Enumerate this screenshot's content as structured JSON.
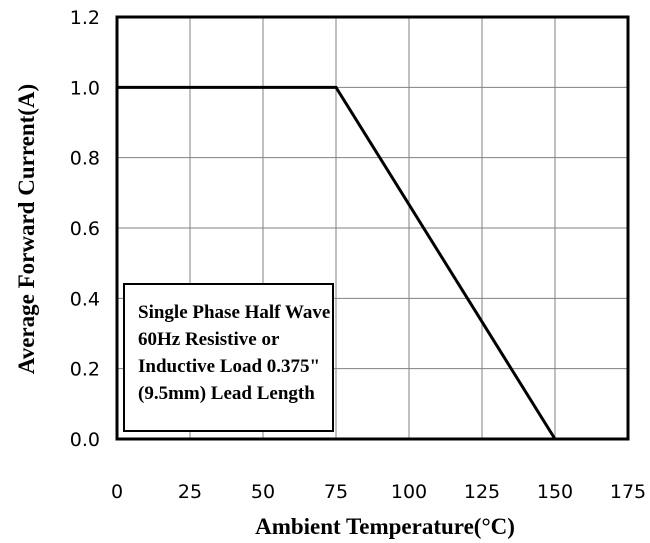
{
  "chart_data": {
    "type": "line",
    "xlabel": "Ambient Temperature(°C)",
    "ylabel": "Average Forward Current(A)",
    "xlim": [
      0,
      175
    ],
    "ylim": [
      0,
      1.2
    ],
    "x_ticks": [
      "0",
      "25",
      "50",
      "75",
      "100",
      "125",
      "150",
      "175"
    ],
    "y_ticks": [
      "0.0",
      "0.2",
      "0.4",
      "0.6",
      "0.8",
      "1.0",
      "1.2"
    ],
    "grid": true,
    "series": [
      {
        "x": [
          0,
          75,
          150
        ],
        "y": [
          1.0,
          1.0,
          0.0
        ]
      }
    ],
    "annotation": [
      "Single Phase Half Wave",
      "60Hz Resistive or",
      "Inductive Load 0.375\"",
      "(9.5mm) Lead Length"
    ],
    "colors": {
      "line": "#000000",
      "grid": "#808080",
      "frame": "#000000"
    }
  }
}
